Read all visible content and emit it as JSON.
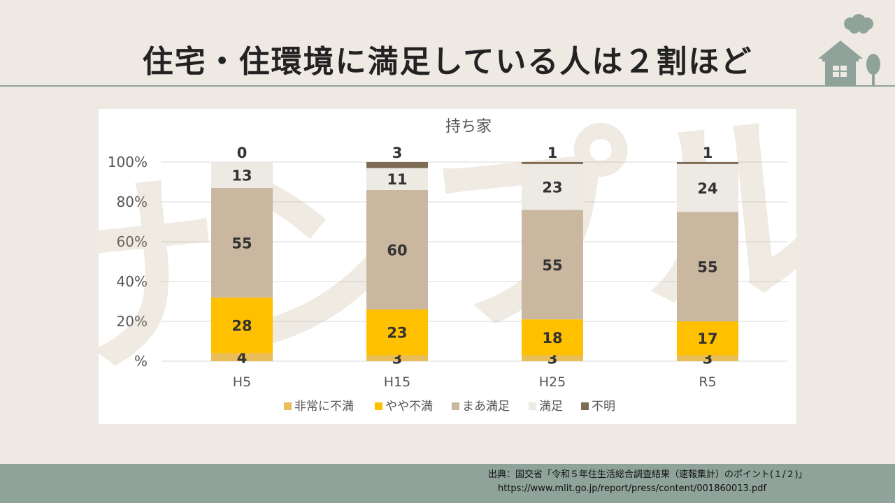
{
  "slide": {
    "title": "住宅・住環境に満足している人は２割ほど",
    "source_line1": "出典：国交省「令和５年住生活総合調査結果（速報集計）のポイント(１/２)」",
    "source_line2": "https://www.mlit.go.jp/report/press/content/001860013.pdf",
    "watermark": "サンプル"
  },
  "colors": {
    "very_dissatisfied": "#e9bd57",
    "somewhat_dissatisfied": "#ffc000",
    "fairly_satisfied": "#c9b7a0",
    "satisfied": "#ede9e3",
    "unknown": "#7e6b53",
    "decoration": "#8fa39a"
  },
  "chart_data": {
    "type": "bar",
    "stacked": true,
    "title": "持ち家",
    "categories": [
      "H5",
      "H15",
      "H25",
      "R5"
    ],
    "ylim": [
      0,
      100
    ],
    "yticks": [
      "%",
      "20%",
      "40%",
      "60%",
      "80%",
      "100%"
    ],
    "grid": true,
    "legend": "bottom",
    "series": [
      {
        "name": "非常に不満",
        "values": [
          4,
          3,
          3,
          3
        ],
        "color": "#e9bd57"
      },
      {
        "name": "やや不満",
        "values": [
          28,
          23,
          18,
          17
        ],
        "color": "#ffc000"
      },
      {
        "name": "まあ満足",
        "values": [
          55,
          60,
          55,
          55
        ],
        "color": "#c9b7a0"
      },
      {
        "name": "満足",
        "values": [
          13,
          11,
          23,
          24
        ],
        "color": "#ede9e3"
      },
      {
        "name": "不明",
        "values": [
          0,
          3,
          1,
          1
        ],
        "color": "#7e6b53"
      }
    ]
  }
}
